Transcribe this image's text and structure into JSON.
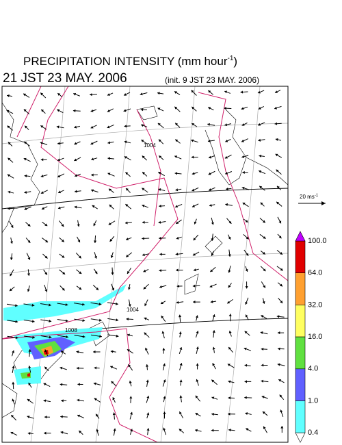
{
  "header": {
    "title": "PRECIPITATION INTENSITY (mm hour",
    "title_sup": "-1",
    "title_close": ")",
    "valid": "21 JST 23 MAY. 2006",
    "init": "(init. 9 JST 23 MAY. 2006)"
  },
  "vector_legend": {
    "label": "20 ms",
    "label_sup": "-1"
  },
  "colorbar": {
    "labels": [
      "100.0",
      "64.0",
      "32.0",
      "16.0",
      "4.0",
      "1.0",
      "0.4"
    ],
    "colors": [
      "#e00000",
      "#ffa030",
      "#ffff60",
      "#60e040",
      "#6060ff",
      "#60ffff"
    ],
    "top_color": "#c000ff",
    "bottom_color": "#ffffff"
  },
  "contours": {
    "labels": [
      "1004",
      "1008",
      "1004"
    ],
    "color": "#d0206a"
  }
}
